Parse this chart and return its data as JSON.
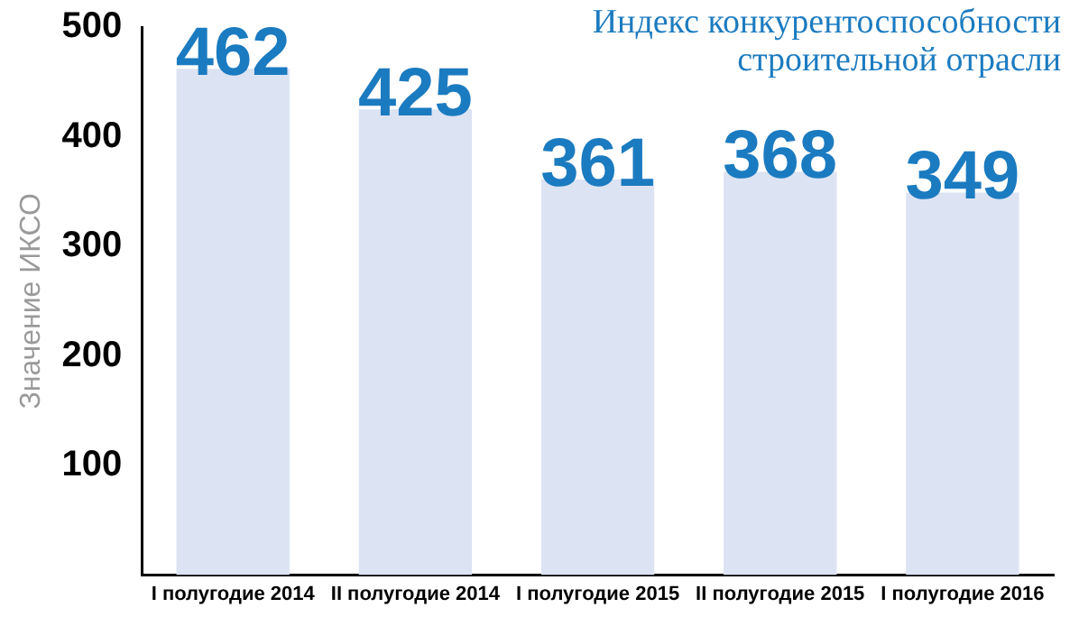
{
  "chart_data": {
    "type": "bar",
    "title": "Индекс конкурентоспособности строительной отрасли",
    "ylabel": "Значение ИКСО",
    "categories": [
      "I полугодие 2014",
      "II полугодие 2014",
      "I полугодие 2015",
      "II полугодие 2015",
      "I полугодие 2016"
    ],
    "values": [
      462,
      425,
      361,
      368,
      349
    ],
    "color": "#dce3f3",
    "data_labels": true,
    "ylim": [
      0,
      500
    ],
    "yticks": [
      100,
      200,
      300,
      400,
      500
    ],
    "grid": false,
    "legend": false
  }
}
